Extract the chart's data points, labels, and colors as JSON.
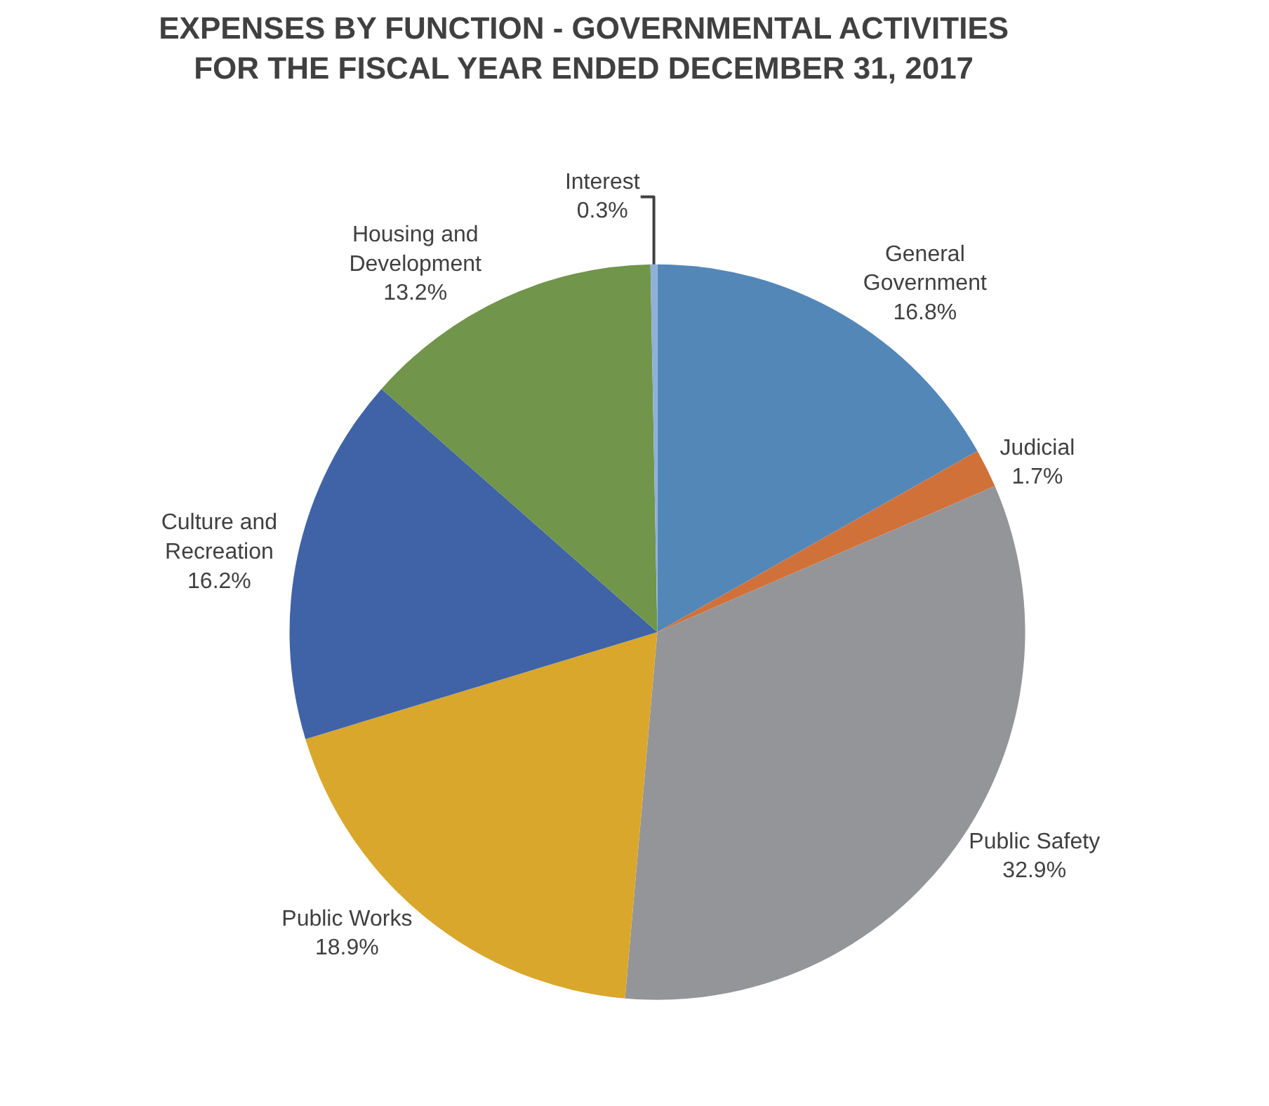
{
  "chart_data": {
    "type": "pie",
    "title": "EXPENSES BY FUNCTION - GOVERNMENTAL ACTIVITIES\nFOR THE FISCAL YEAR ENDED DECEMBER 31, 2017",
    "categories": [
      "General\nGovernment",
      "Judicial",
      "Public Safety",
      "Public Works",
      "Culture and\nRecreation",
      "Housing and\nDevelopment",
      "Interest"
    ],
    "values": [
      16.8,
      1.7,
      32.9,
      18.9,
      16.2,
      13.2,
      0.3
    ],
    "value_labels": [
      "16.8%",
      "1.7%",
      "32.9%",
      "18.9%",
      "16.2%",
      "13.2%",
      "0.3%"
    ],
    "colors": [
      "#5387b8",
      "#d0713a",
      "#949598",
      "#d9a72b",
      "#3f63a6",
      "#71954a",
      "#8fb0d8"
    ],
    "legend": false
  }
}
